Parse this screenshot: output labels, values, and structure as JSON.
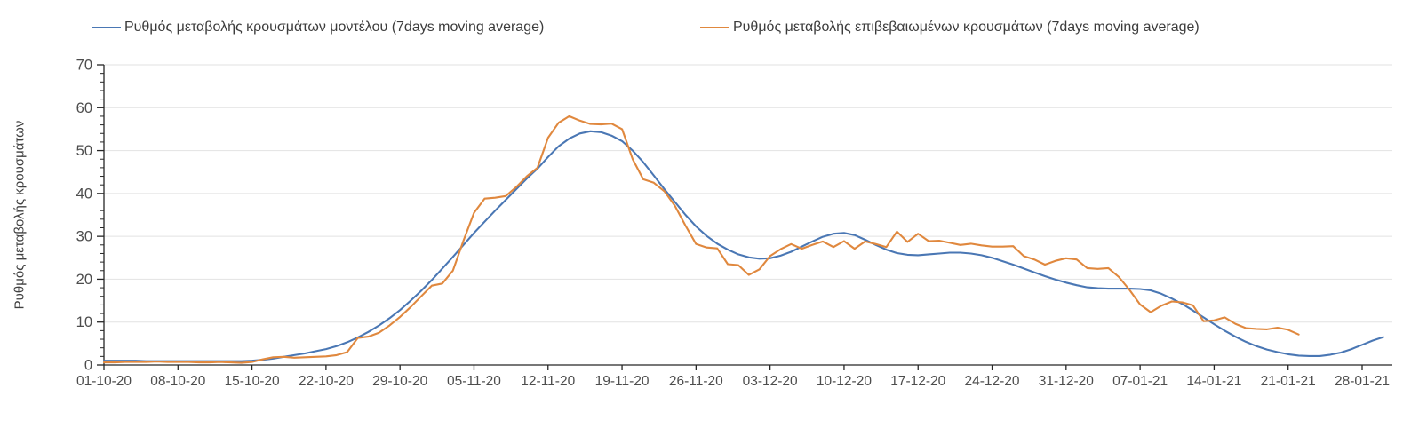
{
  "chart_data": {
    "type": "line",
    "title": "",
    "xlabel": "",
    "ylabel": "Ρυθμός μεταβολής κρουσμάτων",
    "ylim": [
      0,
      70
    ],
    "grid": "horizontal-light",
    "legend_position": "top",
    "x_unit": "daily points starting 01-10-20",
    "colors": {
      "axis": "#262626",
      "grid": "#e2e2e2",
      "tick_label": "#4d4d4d",
      "legend_text": "#3c3c3c"
    },
    "y_axis": {
      "ticks": [
        0,
        10,
        20,
        30,
        40,
        50,
        60,
        70
      ],
      "minor_tick_interval": 2
    },
    "x_axis": {
      "tick_labels": [
        "01-10-20",
        "08-10-20",
        "15-10-20",
        "22-10-20",
        "29-10-20",
        "05-11-20",
        "12-11-20",
        "19-11-20",
        "26-11-20",
        "03-12-20",
        "10-12-20",
        "17-12-20",
        "24-12-20",
        "31-12-20",
        "07-01-21",
        "14-01-21",
        "21-01-21",
        "28-01-21"
      ],
      "tick_day_offsets": [
        0,
        7,
        14,
        21,
        28,
        35,
        42,
        49,
        56,
        63,
        70,
        77,
        84,
        91,
        98,
        105,
        112,
        119
      ]
    },
    "series": [
      {
        "name": "Ρυθμός μεταβολής κρουσμάτων μοντέλου (7days moving average)",
        "color": "#4a77b4",
        "start_date": "01-10-20",
        "end_date": "30-01-21",
        "values": [
          1.0,
          1.0,
          1.0,
          1.0,
          0.9,
          0.9,
          0.9,
          0.9,
          0.9,
          0.9,
          0.9,
          0.9,
          0.9,
          0.9,
          1.0,
          1.2,
          1.5,
          1.9,
          2.3,
          2.7,
          3.2,
          3.7,
          4.4,
          5.3,
          6.4,
          7.7,
          9.2,
          10.9,
          12.8,
          15.0,
          17.3,
          19.8,
          22.5,
          25.2,
          28.0,
          30.8,
          33.4,
          36.0,
          38.5,
          41.0,
          43.5,
          45.8,
          48.5,
          51.0,
          52.8,
          54.0,
          54.5,
          54.3,
          53.5,
          52.2,
          50.0,
          47.3,
          44.2,
          41.0,
          38.0,
          35.0,
          32.3,
          30.1,
          28.3,
          26.9,
          25.8,
          25.1,
          24.8,
          24.9,
          25.5,
          26.4,
          27.6,
          28.8,
          29.9,
          30.6,
          30.8,
          30.3,
          29.2,
          28.0,
          26.9,
          26.1,
          25.7,
          25.6,
          25.8,
          26.0,
          26.2,
          26.2,
          26.0,
          25.6,
          25.0,
          24.2,
          23.4,
          22.5,
          21.6,
          20.7,
          19.9,
          19.2,
          18.6,
          18.1,
          17.9,
          17.8,
          17.8,
          17.8,
          17.7,
          17.4,
          16.6,
          15.5,
          14.2,
          12.7,
          11.1,
          9.5,
          8.0,
          6.6,
          5.4,
          4.4,
          3.6,
          3.0,
          2.5,
          2.2,
          2.1,
          2.1,
          2.4,
          2.9,
          3.7,
          4.7,
          5.7,
          6.5
        ]
      },
      {
        "name": "Ρυθμός μεταβολής επιβεβαιωμένων κρουσμάτων (7days moving average)",
        "color": "#e0883e",
        "start_date": "01-10-20",
        "end_date": "22-01-21",
        "values": [
          0.6,
          0.6,
          0.7,
          0.7,
          0.7,
          0.8,
          0.7,
          0.7,
          0.7,
          0.6,
          0.6,
          0.7,
          0.6,
          0.5,
          0.7,
          1.3,
          1.8,
          1.9,
          1.7,
          1.8,
          1.9,
          2.0,
          2.3,
          3.0,
          6.3,
          6.6,
          7.5,
          9.2,
          11.2,
          13.5,
          16.0,
          18.5,
          19.0,
          22.0,
          29.0,
          35.5,
          38.8,
          39.0,
          39.4,
          41.5,
          44.0,
          46.0,
          53.0,
          56.5,
          58.0,
          57.0,
          56.2,
          56.1,
          56.3,
          55.0,
          48.0,
          43.3,
          42.5,
          40.5,
          37.1,
          32.5,
          28.2,
          27.4,
          27.2,
          23.5,
          23.3,
          21.0,
          22.3,
          25.4,
          27.0,
          28.2,
          27.1,
          28.0,
          28.8,
          27.5,
          28.9,
          27.1,
          28.8,
          28.2,
          27.5,
          31.1,
          28.7,
          30.6,
          28.9,
          29.0,
          28.5,
          28.0,
          28.3,
          27.9,
          27.6,
          27.6,
          27.7,
          25.4,
          24.6,
          23.4,
          24.3,
          24.9,
          24.6,
          22.6,
          22.4,
          22.6,
          20.5,
          17.5,
          14.1,
          12.3,
          13.8,
          14.8,
          14.6,
          13.9,
          10.2,
          10.4,
          11.1,
          9.6,
          8.6,
          8.4,
          8.3,
          8.7,
          8.2,
          7.1
        ]
      }
    ]
  }
}
